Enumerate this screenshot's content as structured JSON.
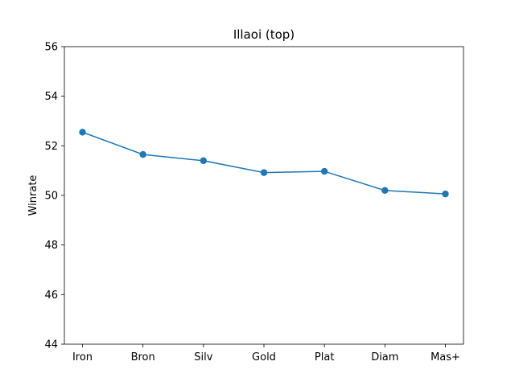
{
  "chart_data": {
    "type": "line",
    "title": "Illaoi (top)",
    "xlabel": "",
    "ylabel": "Winrate",
    "categories": [
      "Iron",
      "Bron",
      "Silv",
      "Gold",
      "Plat",
      "Diam",
      "Mas+"
    ],
    "series": [
      {
        "values": [
          52.55,
          51.65,
          51.4,
          50.92,
          50.97,
          50.2,
          50.06
        ],
        "color": "#1f77b4",
        "marker": "circle"
      }
    ],
    "ylim": [
      44,
      56
    ],
    "yticks": [
      44,
      46,
      48,
      50,
      52,
      54,
      56
    ],
    "grid": false
  }
}
